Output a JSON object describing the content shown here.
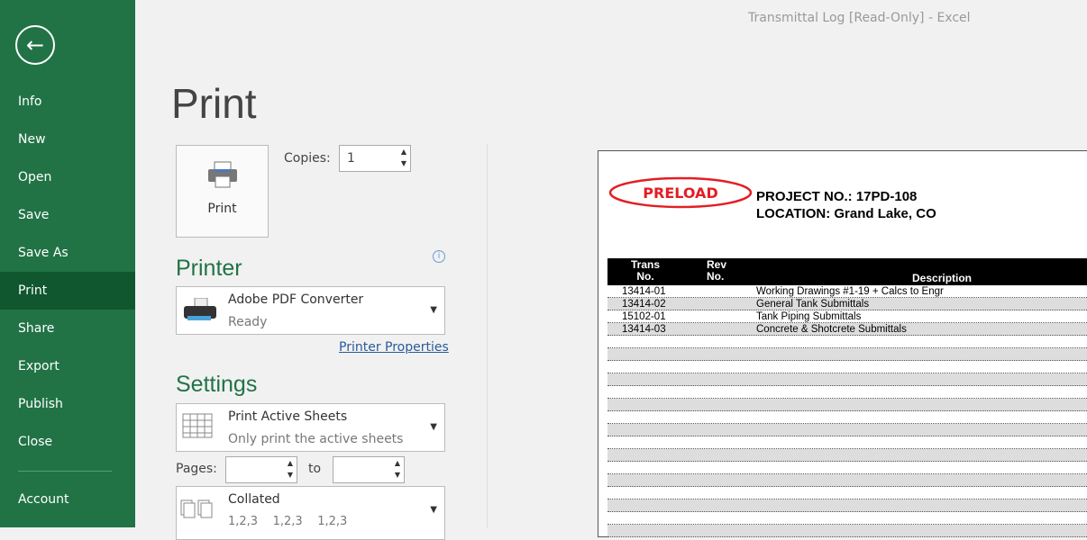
{
  "window": {
    "title": "Transmittal Log  [Read-Only]  -  Excel"
  },
  "sidebar": {
    "items": [
      {
        "label": "Info"
      },
      {
        "label": "New"
      },
      {
        "label": "Open"
      },
      {
        "label": "Save"
      },
      {
        "label": "Save As"
      },
      {
        "label": "Print",
        "selected": true
      },
      {
        "label": "Share"
      },
      {
        "label": "Export"
      },
      {
        "label": "Publish"
      },
      {
        "label": "Close"
      }
    ],
    "account": "Account"
  },
  "print": {
    "heading": "Print",
    "button": "Print",
    "copies_label": "Copies:",
    "copies": "1"
  },
  "printer": {
    "heading": "Printer",
    "name": "Adobe PDF Converter",
    "status": "Ready",
    "properties": "Printer Properties"
  },
  "settings": {
    "heading": "Settings",
    "what": "Print Active Sheets",
    "what_desc": "Only print the active sheets",
    "pages_label": "Pages:",
    "to_label": "to",
    "pages_from": "",
    "pages_to": "",
    "collate": "Collated",
    "collate_desc": [
      "1,2,3",
      "1,2,3",
      "1,2,3"
    ]
  },
  "preview": {
    "logo": "PRELOAD",
    "project": "PROJECT NO.:  17PD-108",
    "location": "LOCATION:  Grand Lake, CO",
    "headers": {
      "trans": [
        "Trans",
        "No."
      ],
      "rev": [
        "Rev",
        "No."
      ],
      "desc": "Description"
    },
    "rows": [
      {
        "trans": "13414-01",
        "rev": "",
        "desc": "Working Drawings #1-19 + Calcs to Engr"
      },
      {
        "trans": "13414-02",
        "rev": "",
        "desc": "General Tank Submittals"
      },
      {
        "trans": "15102-01",
        "rev": "",
        "desc": "Tank Piping Submittals"
      },
      {
        "trans": "13414-03",
        "rev": "",
        "desc": "Concrete & Shotcrete Submittals"
      }
    ]
  },
  "colors": {
    "accent": "#217346",
    "selected": "#10572f",
    "logo": "#e31e24"
  }
}
